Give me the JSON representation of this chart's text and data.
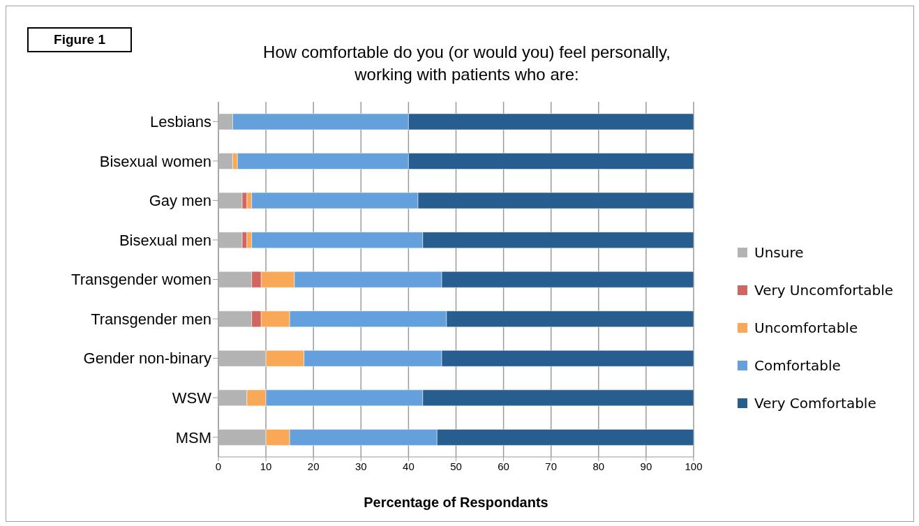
{
  "chart_data": {
    "type": "bar",
    "orientation": "horizontal",
    "stacked": true,
    "title": "How comfortable do you (or would you) feel personally,\nworking with patients who are:",
    "xlabel": "Percentage of Respondants",
    "annotations": [
      "Figure 1"
    ],
    "categories": [
      "Lesbians",
      "Bisexual women",
      "Gay men",
      "Bisexual men",
      "Transgender women",
      "Transgender men ",
      "Gender non-binary",
      "WSW",
      "MSM"
    ],
    "series": [
      {
        "name": "Unsure",
        "color": "#b3b3b3",
        "values": [
          3,
          3,
          5,
          5,
          7,
          7,
          10,
          6,
          10
        ]
      },
      {
        "name": "Very Uncomfortable",
        "color": "#d0665f",
        "values": [
          0,
          0,
          1,
          1,
          2,
          2,
          0,
          0,
          0
        ]
      },
      {
        "name": "Uncomfortable",
        "color": "#f9a857",
        "values": [
          0,
          1,
          1,
          1,
          7,
          6,
          8,
          4,
          5
        ]
      },
      {
        "name": "Comfortable",
        "color": "#64a0dc",
        "values": [
          37,
          36,
          35,
          36,
          31,
          33,
          29,
          33,
          31
        ]
      },
      {
        "name": "Very Comfortable",
        "color": "#275d8f",
        "values": [
          60,
          60,
          58,
          57,
          53,
          52,
          53,
          57,
          54
        ]
      }
    ],
    "xlim": [
      0,
      100
    ],
    "xticks": [
      0,
      10,
      20,
      30,
      40,
      50,
      60,
      70,
      80,
      90,
      100
    ],
    "grid": "x",
    "legend": "right"
  }
}
